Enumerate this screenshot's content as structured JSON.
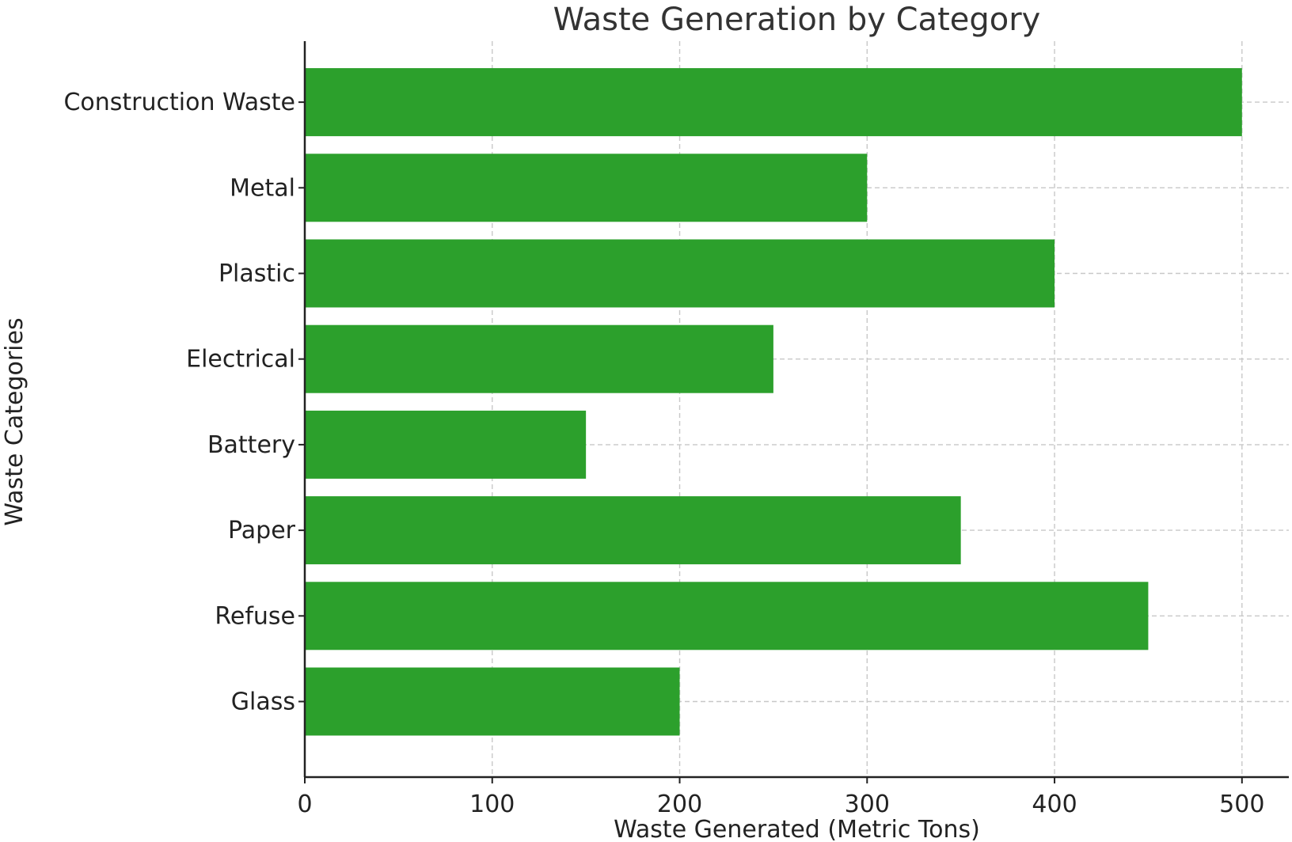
{
  "chart_data": {
    "type": "bar",
    "orientation": "horizontal",
    "title": "Waste Generation by Category",
    "xlabel": "Waste Generated (Metric Tons)",
    "ylabel": "Waste Categories",
    "categories": [
      "Construction Waste",
      "Metal",
      "Plastic",
      "Electrical",
      "Battery",
      "Paper",
      "Refuse",
      "Glass"
    ],
    "values": [
      500,
      300,
      400,
      250,
      150,
      350,
      450,
      200
    ],
    "xlim": [
      0,
      525
    ],
    "xticks": [
      0,
      100,
      200,
      300,
      400,
      500
    ],
    "grid": true,
    "bar_color": "#2ca02c"
  }
}
